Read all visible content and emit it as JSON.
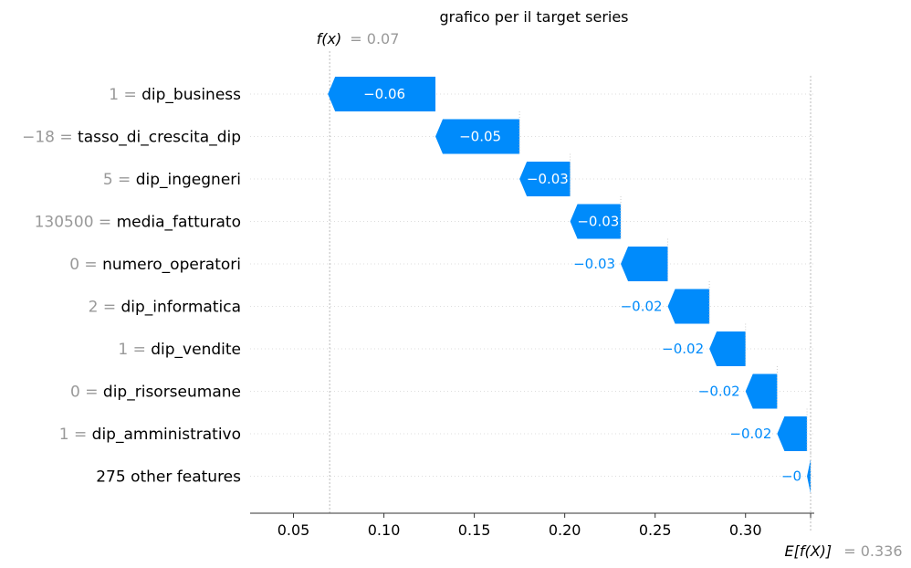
{
  "chart_data": {
    "type": "waterfall",
    "title": "grafico per il target series",
    "fx_label": "f(x)",
    "fx_value": "= 0.07",
    "fx": 0.07,
    "ex_label": "E[f(X)]",
    "ex_value": "= 0.336",
    "ex": 0.336,
    "xlim": [
      0.026,
      0.338
    ],
    "xticks": [
      0.05,
      0.1,
      0.15,
      0.2,
      0.25,
      0.3
    ],
    "xtick_labels": [
      "0.05",
      "0.10",
      "0.15",
      "0.20",
      "0.25",
      "0.30"
    ],
    "features": [
      {
        "value": "1",
        "name": "dip_business",
        "shap": -0.0595,
        "label": "−0.06"
      },
      {
        "value": "−18",
        "name": "tasso_di_crescita_dip",
        "shap": -0.0465,
        "label": "−0.05"
      },
      {
        "value": "5",
        "name": "dip_ingegneri",
        "shap": -0.028,
        "label": "−0.03"
      },
      {
        "value": "130500",
        "name": "media_fatturato",
        "shap": -0.028,
        "label": "−0.03"
      },
      {
        "value": "0",
        "name": "numero_operatori",
        "shap": -0.026,
        "label": "−0.03"
      },
      {
        "value": "2",
        "name": "dip_informatica",
        "shap": -0.023,
        "label": "−0.02"
      },
      {
        "value": "1",
        "name": "dip_vendite",
        "shap": -0.02,
        "label": "−0.02"
      },
      {
        "value": "0",
        "name": "dip_risorseumane",
        "shap": -0.0175,
        "label": "−0.02"
      },
      {
        "value": "1",
        "name": "dip_amministrativo",
        "shap": -0.0165,
        "label": "−0.02"
      },
      {
        "value": "",
        "name": "275 other features",
        "shap": -0.002,
        "label": "−0"
      }
    ],
    "colors": {
      "negative": "#008bfb",
      "muted": "#999999"
    }
  }
}
